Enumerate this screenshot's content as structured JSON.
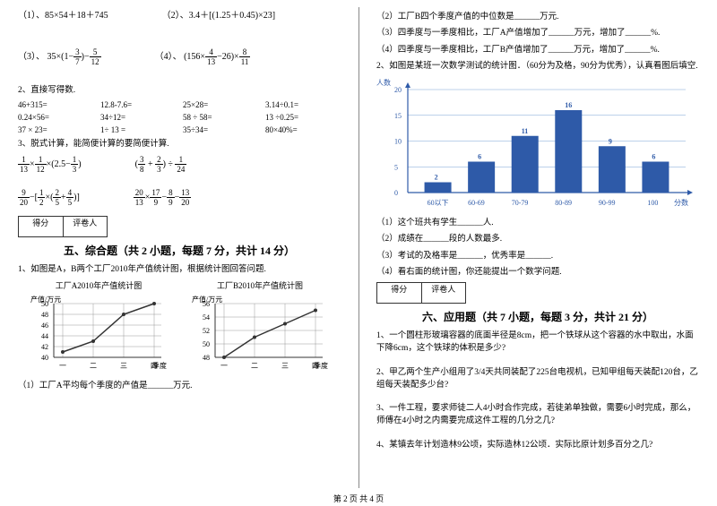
{
  "left": {
    "q1": [
      "（1）、85×54＋18＋745",
      "（2）、3.4＋[(1.25＋0.45)×23]",
      "（3）、",
      "（4）、"
    ],
    "frac3": {
      "a": "35×(1−",
      "n1": "3",
      "d1": "7",
      "b": ")−",
      "n2": "5",
      "d2": "12"
    },
    "frac4": {
      "a": "(156×",
      "n1": "4",
      "d1": "13",
      "b": "−26)×",
      "n2": "8",
      "d2": "11"
    },
    "q2_title": "2、直接写得数.",
    "q2_items": [
      "46+315=",
      "12.8-7.6=",
      "25×28=",
      "3.14÷0.1=",
      "0.24×56=",
      "34÷12=",
      "58 ÷ 58=",
      "13 ÷0.25=",
      "37 × 23=",
      "1÷ 13 =",
      "35÷34=",
      "80×40%="
    ],
    "q3_title": "3、脱式计算，能简便计算的要简便计算.",
    "sec5_title": "五、综合题（共 2 小题，每题 7 分，共计 14 分）",
    "sec5_q1": "1、如图是A，B两个工厂2010年产值统计图，根据统计图回答问题.",
    "chartA": {
      "title": "工厂A2010年产值统计图",
      "ylabel": "产值/万元",
      "xlabel": "季度",
      "yticks": [
        "40",
        "42",
        "44",
        "46",
        "48",
        "50"
      ],
      "xticks": [
        "一",
        "二",
        "三",
        "四"
      ],
      "values": [
        41,
        43,
        48,
        50
      ],
      "color": "#333"
    },
    "chartB": {
      "title": "工厂B2010年产值统计图",
      "ylabel": "产值/万元",
      "xlabel": "季度",
      "yticks": [
        "48",
        "50",
        "52",
        "54",
        "56"
      ],
      "xticks": [
        "一",
        "二",
        "三",
        "四"
      ],
      "values": [
        48,
        51,
        53,
        55
      ],
      "color": "#333"
    },
    "q1_sub": "（1）工厂A平均每个季度的产值是______万元."
  },
  "right": {
    "subs": [
      "（2）工厂B四个季度产值的中位数是______万元.",
      "（3）四季度与一季度相比，工厂A产值增加了______万元，增加了______%.",
      "（4）四季度与一季度相比，工厂B产值增加了______万元，增加了______%."
    ],
    "q2": "2、如图是某班一次数学测试的统计图．（60分为及格，90分为优秀），认真看图后填空.",
    "bar": {
      "ylabel": "人数",
      "xlabel": "分数",
      "yticks": [
        "0",
        "5",
        "10",
        "15",
        "20"
      ],
      "categories": [
        "60以下",
        "60-69",
        "70-79",
        "80-89",
        "90-99",
        "100"
      ],
      "values": [
        2,
        6,
        11,
        16,
        9,
        6
      ],
      "labels": [
        "2",
        "6",
        "11",
        "16",
        "9",
        "6"
      ],
      "bar_color": "#2e5aa8",
      "grid_color": "#7aa3d4",
      "axis_color": "#2e5aa8"
    },
    "bar_subs": [
      "（1）这个班共有学生______人.",
      "（2）成绩在______段的人数最多.",
      "（3）考试的及格率是______，优秀率是______.",
      "（4）看右面的统计图，你还能提出一个数学问题."
    ],
    "sec6_title": "六、应用题（共 7 小题，每题 3 分，共计 21 分）",
    "apps": [
      "1、一个圆柱形玻璃容器的底面半径是8cm，把一个铁球从这个容器的水中取出，水面下降6cm，这个铁球的体积是多少?",
      "2、甲乙两个生产小组用了3/4天共同装配了225台电视机，已知甲组每天装配120台，乙组每天装配多少台?",
      "3、一件工程，要求师徒二人4小时合作完成，若徒弟单独做，需要6小时完成，那么，师傅在4小时之内需要完成这件工程的几分之几?",
      "4、某镇去年计划造林9公顷，实际造林12公顷．实际比原计划多百分之几?"
    ]
  },
  "score_labels": {
    "a": "得分",
    "b": "评卷人"
  },
  "footer": "第 2 页 共 4 页"
}
